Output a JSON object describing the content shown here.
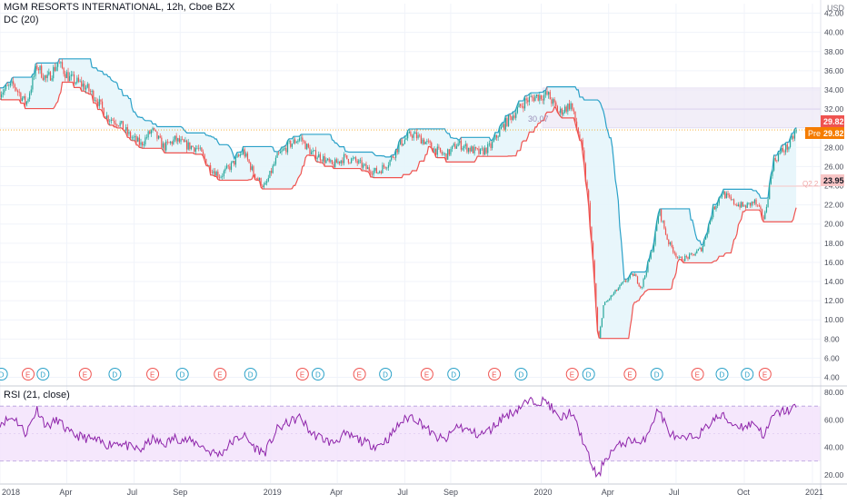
{
  "header": {
    "symbol_line": "MGM RESORTS INTERNATIONAL, 12h, Cboe BZX",
    "indicator_line": "DC (20)",
    "currency": "USD"
  },
  "rsi_panel": {
    "label": "RSI (21, close)"
  },
  "price_labels": {
    "last": {
      "value": "29.82",
      "color": "#ef5350"
    },
    "pre": {
      "label": "Pre",
      "value": "29.82",
      "color": "#f57c00"
    },
    "level": {
      "value": "23.95",
      "color": "#f8c6c6"
    }
  },
  "annotations": {
    "box_value": "30.07",
    "level_tag": "Q2 2"
  },
  "colors": {
    "up": "#26a69a",
    "down": "#ef5350",
    "dc_upper": "#2aa1c8",
    "dc_lower": "#ef5350",
    "dc_fill": "#e6f5fb",
    "rsi_line": "#8e24aa",
    "rsi_band": "#f3e1fb",
    "box": "#ede7f6"
  },
  "chart_data": {
    "type": "candlestick",
    "y_axis_price": {
      "range": [
        3.2,
        43
      ],
      "ticks": [
        "4.00",
        "6.00",
        "8.00",
        "10.00",
        "12.00",
        "14.00",
        "16.00",
        "18.00",
        "20.00",
        "22.00",
        "24.00",
        "26.00",
        "28.00",
        "30.00",
        "32.00",
        "34.00",
        "36.00",
        "38.00",
        "40.00",
        "42.00"
      ]
    },
    "y_axis_rsi": {
      "range": [
        14,
        84
      ],
      "ticks": [
        "20.00",
        "40.00",
        "60.00",
        "80.00"
      ],
      "band": [
        30,
        70
      ]
    },
    "x_axis": {
      "start": "2018-01-01",
      "end": "2021-01-12",
      "ticks": [
        {
          "label": "2018",
          "date": "2018-01-01"
        },
        {
          "label": "Apr",
          "date": "2018-04-01"
        },
        {
          "label": "Jul",
          "date": "2018-07-01"
        },
        {
          "label": "Sep",
          "date": "2018-09-01"
        },
        {
          "label": "2019",
          "date": "2019-01-01"
        },
        {
          "label": "Apr",
          "date": "2019-04-01"
        },
        {
          "label": "Jul",
          "date": "2019-07-01"
        },
        {
          "label": "Sep",
          "date": "2019-09-01"
        },
        {
          "label": "2020",
          "date": "2020-01-01"
        },
        {
          "label": "Apr",
          "date": "2020-04-01"
        },
        {
          "label": "Jul",
          "date": "2020-07-01"
        },
        {
          "label": "Oct",
          "date": "2020-10-01"
        },
        {
          "label": "2021",
          "date": "2021-01-01"
        }
      ]
    },
    "close_series": [
      [
        "2018-01-01",
        33.8
      ],
      [
        "2018-01-20",
        34.5
      ],
      [
        "2018-02-05",
        32.5
      ],
      [
        "2018-02-20",
        36.5
      ],
      [
        "2018-03-05",
        35.0
      ],
      [
        "2018-03-20",
        36.8
      ],
      [
        "2018-04-05",
        35.2
      ],
      [
        "2018-04-25",
        34.4
      ],
      [
        "2018-05-10",
        33.2
      ],
      [
        "2018-05-25",
        31.2
      ],
      [
        "2018-06-10",
        30.6
      ],
      [
        "2018-06-25",
        29.2
      ],
      [
        "2018-07-10",
        28.3
      ],
      [
        "2018-07-25",
        29.8
      ],
      [
        "2018-08-10",
        28.0
      ],
      [
        "2018-08-25",
        28.8
      ],
      [
        "2018-09-10",
        28.2
      ],
      [
        "2018-09-25",
        27.9
      ],
      [
        "2018-10-10",
        26.0
      ],
      [
        "2018-10-25",
        25.0
      ],
      [
        "2018-11-10",
        26.2
      ],
      [
        "2018-11-25",
        27.6
      ],
      [
        "2018-12-10",
        25.2
      ],
      [
        "2018-12-24",
        23.8
      ],
      [
        "2019-01-10",
        27.0
      ],
      [
        "2019-01-25",
        28.2
      ],
      [
        "2019-02-10",
        29.0
      ],
      [
        "2019-02-25",
        27.4
      ],
      [
        "2019-03-10",
        27.0
      ],
      [
        "2019-03-25",
        26.1
      ],
      [
        "2019-04-10",
        26.9
      ],
      [
        "2019-04-25",
        26.6
      ],
      [
        "2019-05-10",
        25.8
      ],
      [
        "2019-05-25",
        25.4
      ],
      [
        "2019-06-10",
        26.5
      ],
      [
        "2019-06-25",
        28.4
      ],
      [
        "2019-07-10",
        29.4
      ],
      [
        "2019-07-25",
        28.8
      ],
      [
        "2019-08-10",
        27.8
      ],
      [
        "2019-08-25",
        27.1
      ],
      [
        "2019-09-10",
        28.4
      ],
      [
        "2019-09-25",
        27.9
      ],
      [
        "2019-10-10",
        27.4
      ],
      [
        "2019-10-25",
        28.1
      ],
      [
        "2019-11-10",
        30.2
      ],
      [
        "2019-11-25",
        31.5
      ],
      [
        "2019-12-10",
        32.8
      ],
      [
        "2019-12-24",
        33.3
      ],
      [
        "2020-01-10",
        33.5
      ],
      [
        "2020-01-25",
        31.6
      ],
      [
        "2020-02-10",
        32.5
      ],
      [
        "2020-02-25",
        28.0
      ],
      [
        "2020-03-05",
        22.0
      ],
      [
        "2020-03-12",
        15.0
      ],
      [
        "2020-03-18",
        7.5
      ],
      [
        "2020-03-25",
        11.5
      ],
      [
        "2020-04-05",
        12.5
      ],
      [
        "2020-04-20",
        13.8
      ],
      [
        "2020-05-05",
        14.8
      ],
      [
        "2020-05-15",
        13.3
      ],
      [
        "2020-06-01",
        18.0
      ],
      [
        "2020-06-08",
        21.5
      ],
      [
        "2020-06-20",
        18.2
      ],
      [
        "2020-07-05",
        16.3
      ],
      [
        "2020-07-20",
        16.6
      ],
      [
        "2020-08-05",
        17.5
      ],
      [
        "2020-08-20",
        21.5
      ],
      [
        "2020-09-01",
        23.3
      ],
      [
        "2020-09-15",
        22.3
      ],
      [
        "2020-10-01",
        21.8
      ],
      [
        "2020-10-15",
        22.3
      ],
      [
        "2020-10-28",
        20.5
      ],
      [
        "2020-11-09",
        26.5
      ],
      [
        "2020-11-20",
        27.6
      ],
      [
        "2020-12-01",
        28.2
      ],
      [
        "2020-12-10",
        29.82
      ]
    ],
    "rsi_series": [
      [
        "2018-01-01",
        58
      ],
      [
        "2018-01-20",
        62
      ],
      [
        "2018-02-05",
        50
      ],
      [
        "2018-02-20",
        68
      ],
      [
        "2018-03-05",
        55
      ],
      [
        "2018-03-20",
        60
      ],
      [
        "2018-04-05",
        50
      ],
      [
        "2018-04-25",
        47
      ],
      [
        "2018-05-10",
        45
      ],
      [
        "2018-05-25",
        42
      ],
      [
        "2018-06-10",
        44
      ],
      [
        "2018-06-25",
        40
      ],
      [
        "2018-07-10",
        38
      ],
      [
        "2018-07-25",
        46
      ],
      [
        "2018-08-10",
        42
      ],
      [
        "2018-08-25",
        47
      ],
      [
        "2018-09-10",
        45
      ],
      [
        "2018-09-25",
        43
      ],
      [
        "2018-10-10",
        37
      ],
      [
        "2018-10-25",
        35
      ],
      [
        "2018-11-10",
        44
      ],
      [
        "2018-11-25",
        49
      ],
      [
        "2018-12-10",
        40
      ],
      [
        "2018-12-24",
        36
      ],
      [
        "2019-01-10",
        53
      ],
      [
        "2019-01-25",
        58
      ],
      [
        "2019-02-10",
        62
      ],
      [
        "2019-02-25",
        50
      ],
      [
        "2019-03-10",
        47
      ],
      [
        "2019-03-25",
        43
      ],
      [
        "2019-04-10",
        49
      ],
      [
        "2019-04-25",
        47
      ],
      [
        "2019-05-10",
        43
      ],
      [
        "2019-05-25",
        41
      ],
      [
        "2019-06-10",
        47
      ],
      [
        "2019-06-25",
        58
      ],
      [
        "2019-07-10",
        63
      ],
      [
        "2019-07-25",
        57
      ],
      [
        "2019-08-10",
        48
      ],
      [
        "2019-08-25",
        45
      ],
      [
        "2019-09-10",
        56
      ],
      [
        "2019-09-25",
        52
      ],
      [
        "2019-10-10",
        49
      ],
      [
        "2019-10-25",
        53
      ],
      [
        "2019-11-10",
        62
      ],
      [
        "2019-11-25",
        66
      ],
      [
        "2019-12-10",
        72
      ],
      [
        "2019-12-24",
        74
      ],
      [
        "2020-01-10",
        73
      ],
      [
        "2020-01-25",
        60
      ],
      [
        "2020-02-10",
        66
      ],
      [
        "2020-02-25",
        47
      ],
      [
        "2020-03-05",
        33
      ],
      [
        "2020-03-12",
        24
      ],
      [
        "2020-03-18",
        17
      ],
      [
        "2020-03-25",
        30
      ],
      [
        "2020-04-05",
        37
      ],
      [
        "2020-04-20",
        43
      ],
      [
        "2020-05-05",
        46
      ],
      [
        "2020-05-15",
        41
      ],
      [
        "2020-06-01",
        61
      ],
      [
        "2020-06-08",
        68
      ],
      [
        "2020-06-20",
        52
      ],
      [
        "2020-07-05",
        45
      ],
      [
        "2020-07-20",
        47
      ],
      [
        "2020-08-05",
        51
      ],
      [
        "2020-08-20",
        60
      ],
      [
        "2020-09-01",
        63
      ],
      [
        "2020-09-15",
        57
      ],
      [
        "2020-10-01",
        55
      ],
      [
        "2020-10-15",
        58
      ],
      [
        "2020-10-28",
        48
      ],
      [
        "2020-11-09",
        63
      ],
      [
        "2020-11-20",
        66
      ],
      [
        "2020-12-01",
        67
      ],
      [
        "2020-12-10",
        70
      ]
    ],
    "events": [
      {
        "date": "2018-01-03",
        "type": "D"
      },
      {
        "date": "2018-02-08",
        "type": "E"
      },
      {
        "date": "2018-02-28",
        "type": "D"
      },
      {
        "date": "2018-04-26",
        "type": "E"
      },
      {
        "date": "2018-06-05",
        "type": "D"
      },
      {
        "date": "2018-07-26",
        "type": "E"
      },
      {
        "date": "2018-09-04",
        "type": "D"
      },
      {
        "date": "2018-10-25",
        "type": "E"
      },
      {
        "date": "2018-12-05",
        "type": "D"
      },
      {
        "date": "2019-02-13",
        "type": "E"
      },
      {
        "date": "2019-03-06",
        "type": "D"
      },
      {
        "date": "2019-05-01",
        "type": "E"
      },
      {
        "date": "2019-06-05",
        "type": "D"
      },
      {
        "date": "2019-07-31",
        "type": "E"
      },
      {
        "date": "2019-09-05",
        "type": "D"
      },
      {
        "date": "2019-10-30",
        "type": "E"
      },
      {
        "date": "2019-12-05",
        "type": "D"
      },
      {
        "date": "2020-02-12",
        "type": "E"
      },
      {
        "date": "2020-03-05",
        "type": "D"
      },
      {
        "date": "2020-04-30",
        "type": "E"
      },
      {
        "date": "2020-06-05",
        "type": "D"
      },
      {
        "date": "2020-07-30",
        "type": "E"
      },
      {
        "date": "2020-09-01",
        "type": "D"
      },
      {
        "date": "2020-10-05",
        "type": "D"
      },
      {
        "date": "2020-10-29",
        "type": "E"
      }
    ],
    "rectangle": {
      "from": "2020-01-03",
      "to": "2021-01-12",
      "low": 30.07,
      "high": 34.2
    },
    "horizontal_line": 23.95,
    "last_price_line": 29.82
  }
}
